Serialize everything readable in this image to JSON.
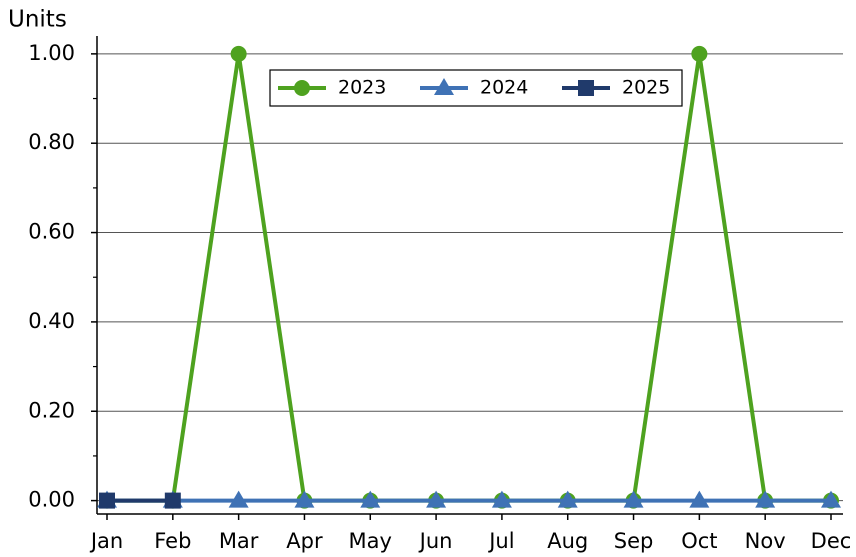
{
  "chart_data": {
    "type": "line",
    "ylabel": "Units",
    "categories": [
      "Jan",
      "Feb",
      "Mar",
      "Apr",
      "May",
      "Jun",
      "Jul",
      "Aug",
      "Sep",
      "Oct",
      "Nov",
      "Dec"
    ],
    "series": [
      {
        "name": "2023",
        "color": "#4ea21f",
        "marker": "circle",
        "values": [
          0,
          0,
          1,
          0,
          0,
          0,
          0,
          0,
          0,
          1,
          0,
          0
        ]
      },
      {
        "name": "2024",
        "color": "#3f72b5",
        "marker": "triangle",
        "values": [
          0,
          0,
          0,
          0,
          0,
          0,
          0,
          0,
          0,
          0,
          0,
          0
        ]
      },
      {
        "name": "2025",
        "color": "#203a6b",
        "marker": "square",
        "values": [
          0,
          0,
          null,
          null,
          null,
          null,
          null,
          null,
          null,
          null,
          null,
          null
        ]
      }
    ],
    "ylim": [
      -0.03,
      1.04
    ],
    "yticks": [
      {
        "value": 0,
        "label": "0.00"
      },
      {
        "value": 0.2,
        "label": "0.20"
      },
      {
        "value": 0.4,
        "label": "0.40"
      },
      {
        "value": 0.6,
        "label": "0.60"
      },
      {
        "value": 0.8,
        "label": "0.80"
      },
      {
        "value": 1,
        "label": "1.00"
      }
    ],
    "yminorticks": [
      0.1,
      0.3,
      0.5,
      0.7,
      0.9
    ],
    "grid": true,
    "legend": "upper center"
  }
}
